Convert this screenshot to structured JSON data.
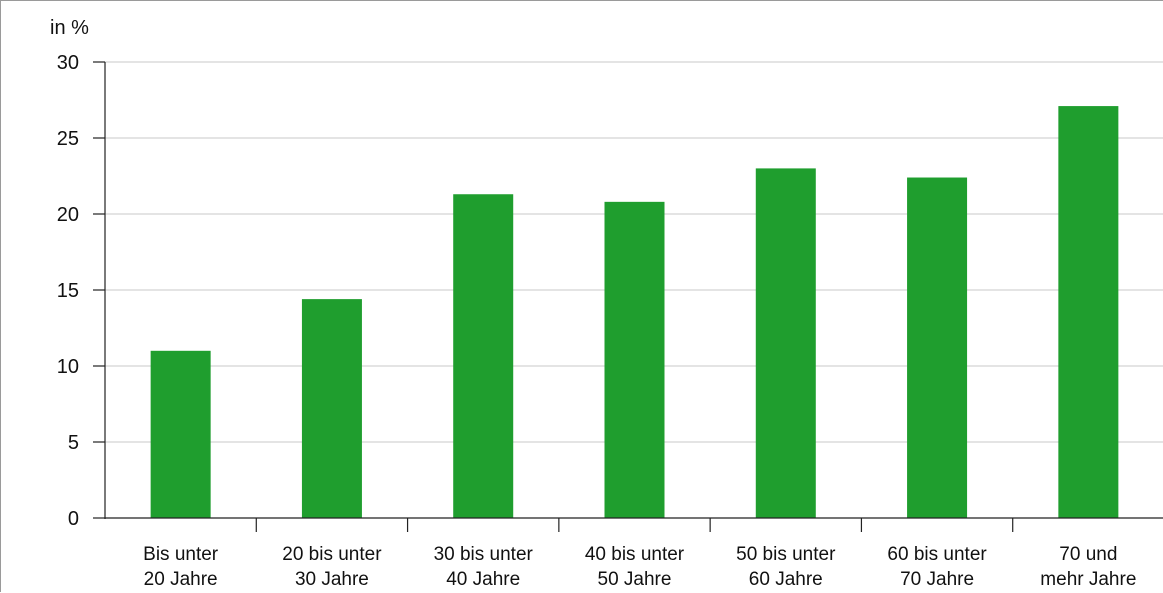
{
  "chart_data": {
    "type": "bar",
    "unit_label": "in %",
    "categories": [
      [
        "Bis unter",
        "20 Jahre"
      ],
      [
        "20 bis unter",
        "30 Jahre"
      ],
      [
        "30 bis unter",
        "40 Jahre"
      ],
      [
        "40 bis unter",
        "50 Jahre"
      ],
      [
        "50 bis unter",
        "60 Jahre"
      ],
      [
        "60 bis unter",
        "70 Jahre"
      ],
      [
        "70 und",
        "mehr Jahre"
      ]
    ],
    "values": [
      11.0,
      14.4,
      21.3,
      20.8,
      23.0,
      22.4,
      27.1
    ],
    "ylim": [
      0,
      30
    ],
    "yticks": [
      "0",
      "5",
      "10",
      "15",
      "20",
      "25",
      "30"
    ],
    "grid": true,
    "bar_color": "#1f9e2e",
    "grid_color": "#d3d3d3",
    "axis_color": "#222222"
  }
}
